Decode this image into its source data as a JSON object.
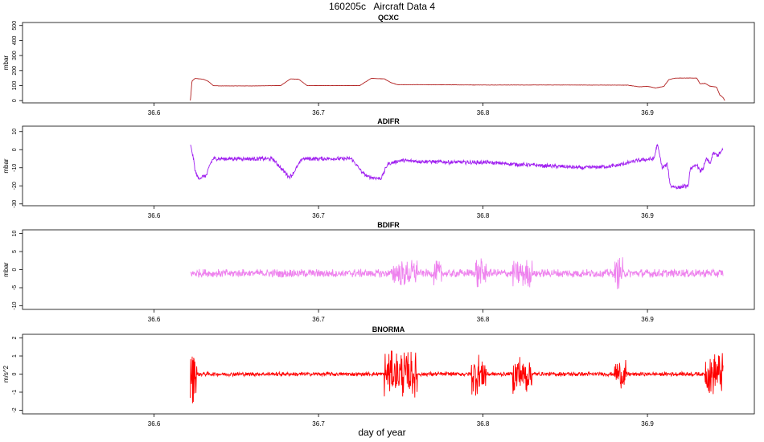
{
  "chart_data": {
    "type": "line",
    "title": "160205c   Aircraft Data 4",
    "xlabel": "day of year",
    "xlim": [
      36.52,
      36.965
    ],
    "x_ticks": [
      "36.6",
      "36.7",
      "36.8",
      "36.9"
    ],
    "x_tick_values": [
      36.6,
      36.7,
      36.8,
      36.9
    ],
    "panels": [
      {
        "name": "QCXC",
        "ylabel": "mbar",
        "color": "#b22222",
        "ylim": [
          -15,
          520
        ],
        "y_ticks": [
          "0",
          "100",
          "200",
          "300",
          "400",
          "500"
        ],
        "y_tick_values": [
          0,
          100,
          200,
          300,
          400,
          500
        ],
        "noise": 1,
        "series": [
          [
            36.622,
            0
          ],
          [
            36.6225,
            50
          ],
          [
            36.623,
            130
          ],
          [
            36.625,
            148
          ],
          [
            36.63,
            142
          ],
          [
            36.633,
            128
          ],
          [
            36.636,
            100
          ],
          [
            36.64,
            98
          ],
          [
            36.66,
            98
          ],
          [
            36.677,
            100
          ],
          [
            36.683,
            145
          ],
          [
            36.688,
            142
          ],
          [
            36.693,
            100
          ],
          [
            36.7,
            100
          ],
          [
            36.725,
            100
          ],
          [
            36.732,
            148
          ],
          [
            36.74,
            145
          ],
          [
            36.744,
            120
          ],
          [
            36.748,
            106
          ],
          [
            36.76,
            106
          ],
          [
            36.8,
            104
          ],
          [
            36.85,
            104
          ],
          [
            36.888,
            103
          ],
          [
            36.895,
            92
          ],
          [
            36.9,
            95
          ],
          [
            36.905,
            84
          ],
          [
            36.91,
            95
          ],
          [
            36.913,
            140
          ],
          [
            36.917,
            150
          ],
          [
            36.93,
            150
          ],
          [
            36.932,
            112
          ],
          [
            36.935,
            115
          ],
          [
            36.938,
            96
          ],
          [
            36.942,
            90
          ],
          [
            36.944,
            38
          ],
          [
            36.946,
            20
          ],
          [
            36.947,
            0
          ]
        ]
      },
      {
        "name": "ADIFR",
        "ylabel": "mbar",
        "color": "#a020f0",
        "ylim": [
          -31,
          13
        ],
        "y_ticks": [
          "-30",
          "-20",
          "-10",
          "0",
          "10"
        ],
        "y_tick_values": [
          -30,
          -20,
          -10,
          0,
          10
        ],
        "noise": 1.2,
        "series": [
          [
            36.622,
            3
          ],
          [
            36.624,
            -5
          ],
          [
            36.625,
            -12
          ],
          [
            36.627,
            -16
          ],
          [
            36.632,
            -14
          ],
          [
            36.634,
            -8
          ],
          [
            36.636,
            -5
          ],
          [
            36.65,
            -5
          ],
          [
            36.672,
            -5
          ],
          [
            36.682,
            -15
          ],
          [
            36.684,
            -14
          ],
          [
            36.69,
            -5
          ],
          [
            36.72,
            -5
          ],
          [
            36.727,
            -13
          ],
          [
            36.73,
            -15
          ],
          [
            36.738,
            -16
          ],
          [
            36.742,
            -8
          ],
          [
            36.746,
            -7
          ],
          [
            36.75,
            -6
          ],
          [
            36.78,
            -7
          ],
          [
            36.8,
            -7
          ],
          [
            36.82,
            -8
          ],
          [
            36.84,
            -9
          ],
          [
            36.86,
            -10
          ],
          [
            36.88,
            -9
          ],
          [
            36.894,
            -6
          ],
          [
            36.904,
            -5
          ],
          [
            36.906,
            3
          ],
          [
            36.909,
            -10
          ],
          [
            36.912,
            -8
          ],
          [
            36.914,
            -20
          ],
          [
            36.918,
            -21
          ],
          [
            36.925,
            -20
          ],
          [
            36.926,
            -10
          ],
          [
            36.928,
            -10
          ],
          [
            36.93,
            -8
          ],
          [
            36.932,
            -12
          ],
          [
            36.934,
            -10
          ],
          [
            36.936,
            -5
          ],
          [
            36.938,
            -8
          ],
          [
            36.94,
            -2
          ],
          [
            36.943,
            -3
          ],
          [
            36.946,
            0
          ]
        ]
      },
      {
        "name": "BDIFR",
        "ylabel": "mbar",
        "color": "#ee82ee",
        "ylim": [
          -11,
          11
        ],
        "y_ticks": [
          "-10",
          "-5",
          "0",
          "5",
          "10"
        ],
        "y_tick_values": [
          -10,
          -5,
          0,
          5,
          10
        ],
        "noise": 1.2,
        "series": [
          [
            36.622,
            -1
          ],
          [
            36.7,
            -1
          ],
          [
            36.75,
            -1
          ],
          [
            36.8,
            -1
          ],
          [
            36.85,
            -1
          ],
          [
            36.9,
            -1
          ],
          [
            36.946,
            -1
          ]
        ],
        "bursts": [
          [
            36.745,
            36.76,
            4
          ],
          [
            36.77,
            36.775,
            3.5
          ],
          [
            36.795,
            36.802,
            5
          ],
          [
            36.818,
            36.83,
            4
          ],
          [
            36.88,
            36.885,
            4.5
          ]
        ]
      },
      {
        "name": "BNORMA",
        "ylabel": "m/s^2",
        "color": "#ff0000",
        "ylim": [
          -2.2,
          2.2
        ],
        "y_ticks": [
          "-2",
          "-1",
          "0",
          "1",
          "2"
        ],
        "y_tick_values": [
          -2,
          -1,
          0,
          1,
          2
        ],
        "noise": 0.12,
        "series": [
          [
            36.622,
            0
          ],
          [
            36.7,
            0
          ],
          [
            36.75,
            0
          ],
          [
            36.8,
            0
          ],
          [
            36.85,
            0
          ],
          [
            36.9,
            0
          ],
          [
            36.946,
            0
          ]
        ],
        "bursts": [
          [
            36.622,
            36.626,
            1.8
          ],
          [
            36.74,
            36.76,
            1.3
          ],
          [
            36.793,
            36.802,
            1.2
          ],
          [
            36.818,
            36.83,
            1.1
          ],
          [
            36.88,
            36.887,
            0.8
          ],
          [
            36.935,
            36.946,
            1.2
          ]
        ]
      }
    ]
  }
}
